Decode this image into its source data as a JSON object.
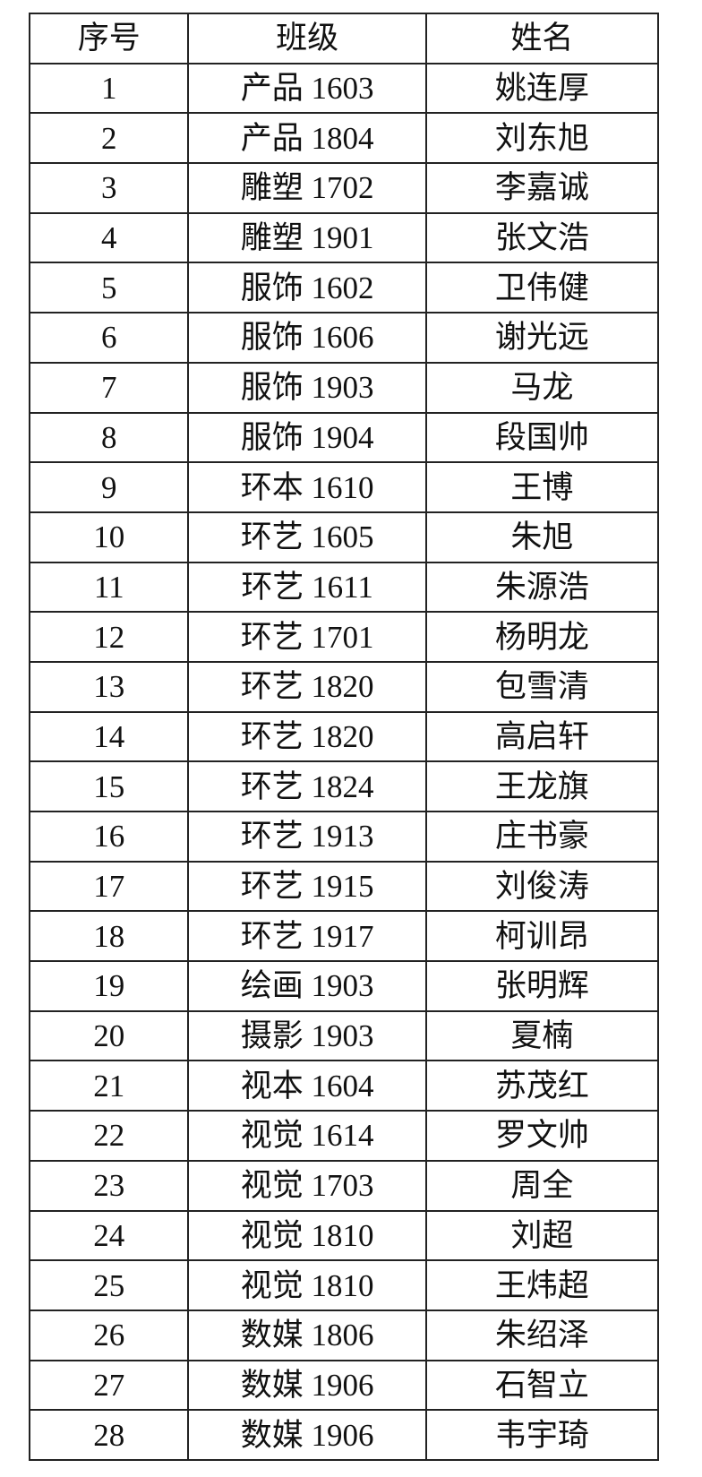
{
  "headers": [
    "序号",
    "班级",
    "姓名"
  ],
  "rows": [
    [
      "1",
      "产品 1603",
      "姚连厚"
    ],
    [
      "2",
      "产品 1804",
      "刘东旭"
    ],
    [
      "3",
      "雕塑 1702",
      "李嘉诚"
    ],
    [
      "4",
      "雕塑 1901",
      "张文浩"
    ],
    [
      "5",
      "服饰 1602",
      "卫伟健"
    ],
    [
      "6",
      "服饰 1606",
      "谢光远"
    ],
    [
      "7",
      "服饰 1903",
      "马龙"
    ],
    [
      "8",
      "服饰 1904",
      "段国帅"
    ],
    [
      "9",
      "环本 1610",
      "王博"
    ],
    [
      "10",
      "环艺 1605",
      "朱旭"
    ],
    [
      "11",
      "环艺 1611",
      "朱源浩"
    ],
    [
      "12",
      "环艺 1701",
      "杨明龙"
    ],
    [
      "13",
      "环艺 1820",
      "包雪清"
    ],
    [
      "14",
      "环艺 1820",
      "高启轩"
    ],
    [
      "15",
      "环艺 1824",
      "王龙旗"
    ],
    [
      "16",
      "环艺 1913",
      "庄书豪"
    ],
    [
      "17",
      "环艺 1915",
      "刘俊涛"
    ],
    [
      "18",
      "环艺 1917",
      "柯训昂"
    ],
    [
      "19",
      "绘画 1903",
      "张明辉"
    ],
    [
      "20",
      "摄影 1903",
      "夏楠"
    ],
    [
      "21",
      "视本 1604",
      "苏茂红"
    ],
    [
      "22",
      "视觉 1614",
      "罗文帅"
    ],
    [
      "23",
      "视觉 1703",
      "周全"
    ],
    [
      "24",
      "视觉 1810",
      "刘超"
    ],
    [
      "25",
      "视觉 1810",
      "王炜超"
    ],
    [
      "26",
      "数媒 1806",
      "朱绍泽"
    ],
    [
      "27",
      "数媒 1906",
      "石智立"
    ],
    [
      "28",
      "数媒 1906",
      "韦宇琦"
    ]
  ]
}
